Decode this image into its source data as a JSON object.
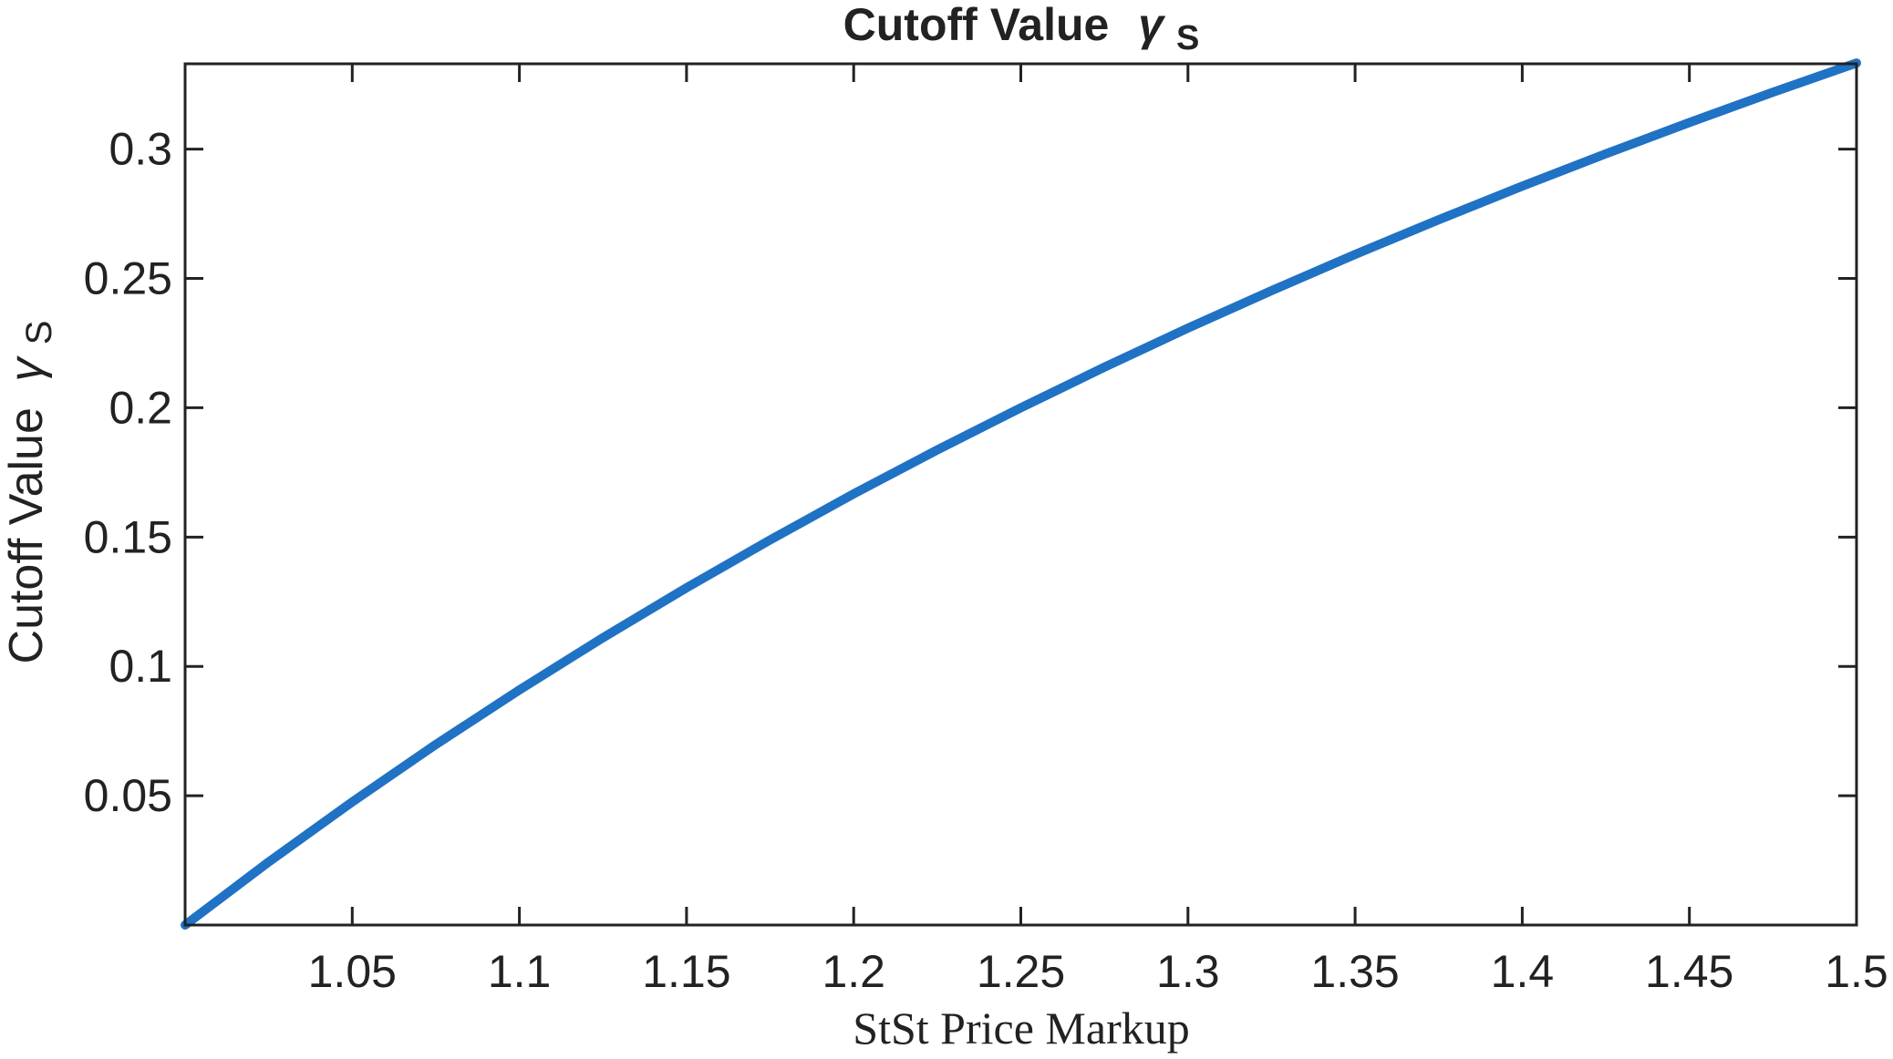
{
  "chart_data": {
    "type": "line",
    "title": "Cutoff Value",
    "title_symbol": "γ",
    "title_subscript": "S",
    "xlabel": "StSt Price Markup",
    "ylabel": "Cutoff Value",
    "ylabel_symbol": "γ",
    "ylabel_subscript": "S",
    "xlim": [
      1.0,
      1.5
    ],
    "ylim": [
      0.0,
      0.333
    ],
    "x_ticks": [
      1.05,
      1.1,
      1.15,
      1.2,
      1.25,
      1.3,
      1.35,
      1.4,
      1.45,
      1.5
    ],
    "x_tick_labels": [
      "1.05",
      "1.1",
      "1.15",
      "1.2",
      "1.25",
      "1.3",
      "1.35",
      "1.4",
      "1.45",
      "1.5"
    ],
    "y_ticks": [
      0.05,
      0.1,
      0.15,
      0.2,
      0.25,
      0.3
    ],
    "y_tick_labels": [
      "0.05",
      "0.1",
      "0.15",
      "0.2",
      "0.25",
      "0.3"
    ],
    "grid": false,
    "series": [
      {
        "name": "Cutoff Value",
        "color": "#1f72c4",
        "x": [
          1.0,
          1.025,
          1.05,
          1.075,
          1.1,
          1.125,
          1.15,
          1.175,
          1.2,
          1.225,
          1.25,
          1.275,
          1.3,
          1.325,
          1.35,
          1.375,
          1.4,
          1.425,
          1.45,
          1.475,
          1.5
        ],
        "y": [
          0.0,
          0.0244,
          0.0476,
          0.0698,
          0.0909,
          0.1111,
          0.1304,
          0.1489,
          0.1667,
          0.1837,
          0.2,
          0.2157,
          0.2308,
          0.2453,
          0.2593,
          0.2727,
          0.2857,
          0.2982,
          0.3103,
          0.322,
          0.3333
        ]
      }
    ]
  }
}
